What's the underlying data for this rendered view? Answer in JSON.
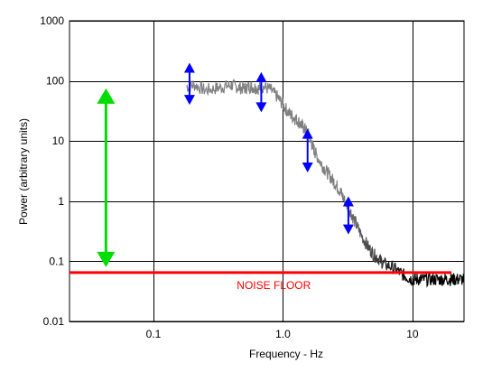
{
  "chart_data": {
    "type": "line",
    "xscale": "log",
    "yscale": "log",
    "xlim": [
      0.0225,
      25
    ],
    "ylim": [
      0.01,
      1000
    ],
    "grid": true,
    "xlabel": "Frequency - Hz",
    "ylabel": "Power (arbitrary units)",
    "x_ticks": [
      {
        "value": 0.1,
        "label": "0.1"
      },
      {
        "value": 1,
        "label": "1.0"
      },
      {
        "value": 10,
        "label": "10"
      }
    ],
    "y_ticks": [
      {
        "value": 0.01,
        "label": "0.01"
      },
      {
        "value": 0.1,
        "label": "0.1"
      },
      {
        "value": 1,
        "label": "1"
      },
      {
        "value": 10,
        "label": "10"
      },
      {
        "value": 100,
        "label": "100"
      },
      {
        "value": 1000,
        "label": "1000"
      }
    ],
    "series": [
      {
        "color": "#808080",
        "color_end": "#000000",
        "x": [
          0.18,
          0.21,
          0.25,
          0.3,
          0.35,
          0.4,
          0.45,
          0.5,
          0.55,
          0.6,
          0.65,
          0.7,
          0.8,
          0.9,
          1.0,
          1.1,
          1.2,
          1.3,
          1.4,
          1.5,
          1.6,
          1.7,
          1.8,
          2.0,
          2.2,
          2.4,
          2.6,
          2.8,
          3.0,
          3.3,
          3.6,
          4.0,
          4.5,
          5.0,
          5.5,
          6.0,
          7.0,
          8.0,
          9.0,
          10,
          11,
          12,
          14,
          16,
          18,
          20,
          22,
          25
        ],
        "y": [
          80,
          85,
          70,
          75,
          80,
          85,
          78,
          75,
          80,
          78,
          75,
          80,
          72,
          55,
          40,
          30,
          25,
          22,
          18,
          15,
          12,
          8,
          6,
          4,
          3,
          2.3,
          1.8,
          1.4,
          1.0,
          0.7,
          0.45,
          0.28,
          0.18,
          0.13,
          0.11,
          0.09,
          0.08,
          0.065,
          0.055,
          0.05,
          0.05,
          0.05,
          0.05,
          0.05,
          0.05,
          0.05,
          0.05,
          0.05
        ]
      }
    ],
    "noise_floor": {
      "y": 0.065,
      "x": [
        0.0225,
        20
      ],
      "label": "NOISE FLOOR",
      "color": "#ff0000"
    },
    "annotations": [
      {
        "type": "double-arrow",
        "x": 0.043,
        "y_from": 0.08,
        "y_to": 75,
        "color": "#00dd00"
      },
      {
        "type": "double-arrow",
        "x": 0.19,
        "y_from": 40,
        "y_to": 200,
        "color": "#0000ff"
      },
      {
        "type": "double-arrow",
        "x": 0.68,
        "y_from": 30,
        "y_to": 140,
        "color": "#0000ff"
      },
      {
        "type": "double-arrow",
        "x": 1.55,
        "y_from": 3,
        "y_to": 16,
        "color": "#0000ff"
      },
      {
        "type": "double-arrow",
        "x": 3.2,
        "y_from": 0.28,
        "y_to": 1.2,
        "color": "#0000ff"
      }
    ]
  }
}
